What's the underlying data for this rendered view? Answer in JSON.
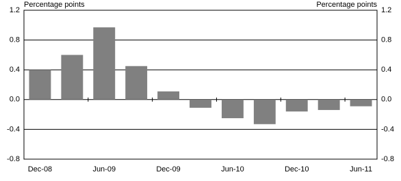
{
  "chart_data": {
    "type": "bar",
    "y_label": "Percentage points",
    "y2_label": "Percentage points",
    "categories": [
      "Dec-08",
      null,
      "Jun-09",
      null,
      "Dec-09",
      null,
      "Jun-10",
      null,
      "Dec-10",
      null,
      "Jun-11"
    ],
    "values": [
      0.4,
      0.6,
      0.97,
      0.45,
      0.11,
      -0.11,
      -0.25,
      -0.33,
      -0.16,
      -0.14,
      -0.09
    ],
    "color": "#808080",
    "ylim": [
      -0.8,
      1.2
    ],
    "yticks": [
      -0.8,
      -0.4,
      {
        "value": 0,
        "label": "0.0"
      },
      0.4,
      0.8,
      1.2
    ],
    "y2lim": [
      -0.8,
      1.2
    ],
    "y2ticks": [
      -0.8,
      -0.4,
      {
        "value": 0,
        "label": "0.0"
      },
      0.4,
      0.8,
      1.2
    ],
    "grid": true
  }
}
